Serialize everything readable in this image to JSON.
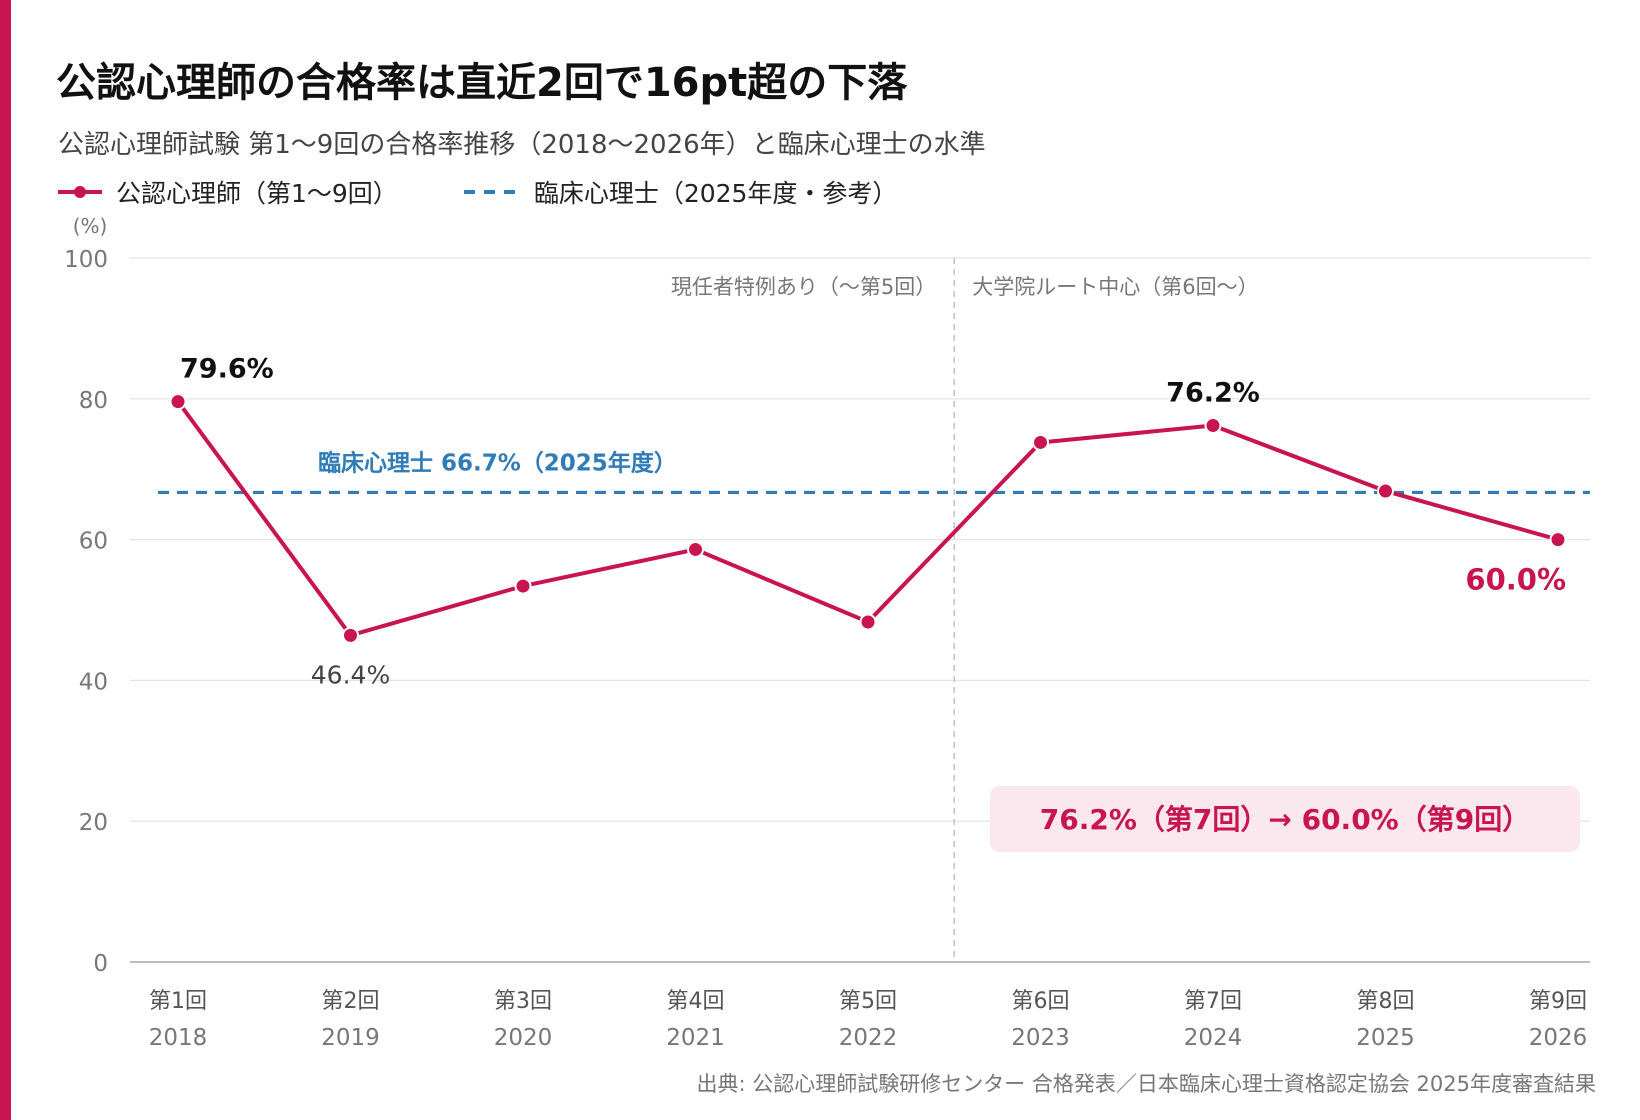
{
  "title": "公認心理師の合格率は直近2回で16pt超の下落",
  "subtitle": "公認心理師試験 第1〜9回の合格率推移（2018〜2026年）と臨床心理士の水準",
  "legend": {
    "series_label": "公認心理師（第1〜9回）",
    "reference_label": "臨床心理士（2025年度・参考）"
  },
  "source": "出典: 公認心理師試験研修センター 合格発表／日本臨床心理士資格認定協会 2025年度審査結果",
  "colors": {
    "accent": "#c8154f",
    "series": "#c8154f",
    "reference": "#2f7cb8",
    "callout_bg": "#fbe7ee",
    "grid": "#e3e3e3",
    "axis_text": "#777777"
  },
  "chart_data": {
    "type": "line",
    "ylabel": "(%)",
    "ylim": [
      0,
      100
    ],
    "yticks": [
      0,
      20,
      40,
      60,
      80,
      100
    ],
    "categories": [
      "第1回",
      "第2回",
      "第3回",
      "第4回",
      "第5回",
      "第6回",
      "第7回",
      "第8回",
      "第9回"
    ],
    "years": [
      "2018",
      "2019",
      "2020",
      "2021",
      "2022",
      "2023",
      "2024",
      "2025",
      "2026"
    ],
    "series": [
      {
        "name": "公認心理師（第1〜9回）",
        "values": [
          79.6,
          46.4,
          53.4,
          58.6,
          48.3,
          73.8,
          76.2,
          66.9,
          60.0
        ]
      }
    ],
    "data_labels": [
      {
        "index": 0,
        "text": "79.6%"
      },
      {
        "index": 1,
        "text": "46.4%"
      },
      {
        "index": 6,
        "text": "76.2%"
      },
      {
        "index": 8,
        "text": "60.0%"
      }
    ],
    "reference_line": {
      "name": "臨床心理士（2025年度・参考）",
      "value": 66.7,
      "label": "臨床心理士 66.7%（2025年度）"
    },
    "divider": {
      "after_index": 4,
      "left_label": "現任者特例あり（〜第5回）",
      "right_label": "大学院ルート中心（第6回〜）"
    },
    "callout": "76.2%（第7回）→ 60.0%（第9回）",
    "grid": true
  }
}
